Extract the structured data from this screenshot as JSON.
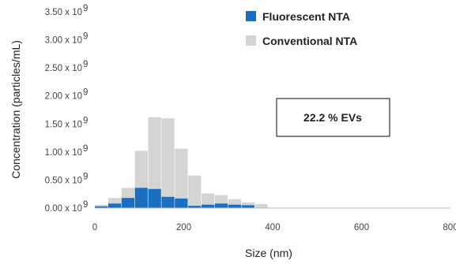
{
  "chart_data": {
    "type": "bar",
    "xlabel": "Size (nm)",
    "ylabel": "Concentration (particles/mL)",
    "xlim": [
      0,
      800
    ],
    "ylim": [
      0,
      3500000000.0
    ],
    "x_ticks": [
      "0",
      "200",
      "400",
      "600",
      "800"
    ],
    "y_ticks": [
      "0.00 x 10",
      "0.50 x 10",
      "1.00 x 10",
      "1.50 x 10",
      "2.00 x 10",
      "2.50 x 10",
      "3.00 x 10",
      "3.50 x 10"
    ],
    "y_tick_exponent": "9",
    "bin_width_nm": 30,
    "bin_starts": [
      0,
      30,
      60,
      90,
      120,
      150,
      180,
      210,
      240,
      270,
      300,
      330,
      360
    ],
    "series": [
      {
        "name": "Conventional NTA",
        "color": "#d4d4d4",
        "values": [
          60000000.0,
          180000000.0,
          360000000.0,
          1020000000.0,
          1620000000.0,
          1600000000.0,
          1060000000.0,
          580000000.0,
          260000000.0,
          230000000.0,
          160000000.0,
          100000000.0,
          70000000.0
        ]
      },
      {
        "name": "Fluorescent NTA",
        "color": "#1a6fc0",
        "values": [
          30000000.0,
          80000000.0,
          180000000.0,
          360000000.0,
          340000000.0,
          200000000.0,
          170000000.0,
          40000000.0,
          60000000.0,
          80000000.0,
          60000000.0,
          50000000.0,
          0.0
        ]
      }
    ],
    "legend_position": "top-right",
    "annotation": "22.2 % EVs",
    "grid": false
  }
}
